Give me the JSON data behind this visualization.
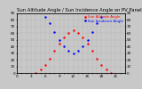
{
  "title": "Sun Altitude Angle / Sun Incidence Angle on PV Panels",
  "legend_labels": [
    "Sun Altitude Angle",
    "Sun Incidence Angle"
  ],
  "legend_colors": [
    "#ff0000",
    "#0000ff"
  ],
  "ylim": [
    0,
    90
  ],
  "xlim": [
    0,
    23
  ],
  "background_color": "#c8c8c8",
  "plot_bg_color": "#c8c8c8",
  "grid_color": "#999999",
  "altitude_x": [
    4,
    5,
    6,
    7,
    8,
    9,
    10,
    11,
    12,
    13,
    14,
    15,
    16,
    17,
    18,
    19,
    20
  ],
  "altitude_y": [
    0,
    5,
    12,
    22,
    33,
    44,
    54,
    61,
    64,
    61,
    54,
    44,
    33,
    22,
    12,
    5,
    0
  ],
  "incidence_x": [
    6,
    7,
    8,
    9,
    10,
    11,
    12,
    13,
    14,
    15,
    16,
    17,
    18
  ],
  "incidence_y": [
    85,
    75,
    62,
    50,
    40,
    33,
    30,
    33,
    40,
    50,
    62,
    75,
    85
  ],
  "title_fontsize": 3.8,
  "tick_fontsize": 3.0,
  "legend_fontsize": 2.8,
  "dot_size": 1.5,
  "right_yticks": [
    0,
    10,
    20,
    30,
    40,
    50,
    60,
    70,
    80,
    90
  ],
  "right_ylabels": [
    "0",
    "10",
    "20",
    "30",
    "40",
    "50",
    "60",
    "70",
    "80",
    "90"
  ],
  "left_yticks": [
    0,
    10,
    20,
    30,
    40,
    50,
    60,
    70,
    80,
    90
  ],
  "left_ylabels": [
    "0",
    "10",
    "20",
    "30",
    "40",
    "50",
    "60",
    "70",
    "80",
    "90"
  ],
  "xtick_step": 1,
  "xtick_labels_every": 3
}
